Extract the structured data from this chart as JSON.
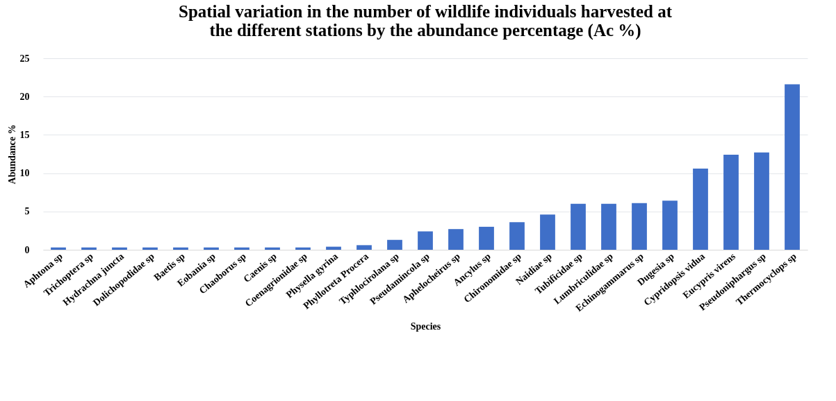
{
  "chart_data": {
    "type": "bar",
    "title": [
      "Spatial variation in the number of wildlife individuals harvested at",
      "the different stations by the abundance percentage (Ac %)"
    ],
    "xlabel": "Species",
    "ylabel": "Abundance  %",
    "categories": [
      "Aphtona sp",
      "Trichoptera sp",
      "Hydrachna juncta",
      "Dolichopodidae sp",
      "Baetis sp",
      "Eobania sp",
      "Chaoborus sp",
      "Caenis sp",
      "Coenagrionidae sp",
      "Physella gyrina",
      "Phyllotreta Procera",
      "Typhlocirolana sp",
      "Pseudamincola sp",
      "Aphelocheirus sp",
      "Ancylus sp",
      "Chironomidae sp",
      "Naidiae sp",
      "Tubificidae sp",
      "Lumbriculidae sp",
      "Echinogammarus sp",
      "Dugesia sp",
      "Cypridopsis vidua",
      "Eucypris virens",
      "Pseudoniphargus sp",
      "Thermocyclops sp"
    ],
    "values": [
      0.3,
      0.3,
      0.3,
      0.3,
      0.3,
      0.3,
      0.3,
      0.3,
      0.3,
      0.4,
      0.6,
      1.3,
      2.4,
      2.7,
      3.0,
      3.6,
      4.6,
      6.0,
      6.0,
      6.1,
      6.4,
      10.6,
      12.4,
      12.7,
      21.6
    ],
    "color": "#3f6fc8",
    "ylim": [
      0,
      25
    ],
    "yticks": [
      0,
      5,
      10,
      15,
      20,
      25
    ],
    "grid": "y"
  }
}
